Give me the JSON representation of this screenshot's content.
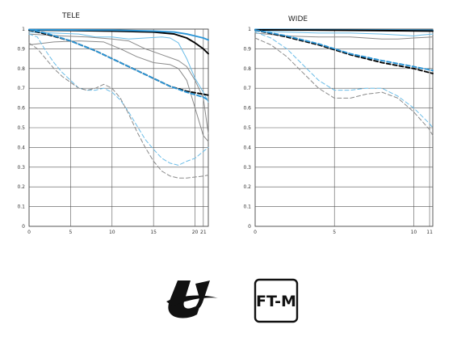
{
  "chart_data": [
    {
      "type": "line",
      "title": "TELE",
      "xlabel": "",
      "ylabel": "",
      "xlim": [
        0,
        21.6
      ],
      "ylim": [
        0,
        1
      ],
      "x_ticks": [
        0,
        5,
        10,
        15,
        20,
        21
      ],
      "y_ticks": [
        0,
        0.1,
        0.2,
        0.3,
        0.4,
        0.5,
        0.6,
        0.7,
        0.8,
        0.9,
        1
      ],
      "x_tick_labels": [
        "0",
        "5",
        "10",
        "15",
        "20",
        "21"
      ],
      "y_tick_labels": [
        "0",
        "0.1",
        "0.2",
        "0.3",
        "0.4",
        "0.5",
        "0.6",
        "0.7",
        "0.8",
        "0.9",
        "1"
      ],
      "grid": true,
      "series": [
        {
          "color": "#000000",
          "dash": "solid",
          "width": 1.9,
          "points": [
            [
              0,
              0.995
            ],
            [
              5,
              0.993
            ],
            [
              10,
              0.99
            ],
            [
              15,
              0.985
            ],
            [
              17.5,
              0.975
            ],
            [
              19,
              0.955
            ],
            [
              20,
              0.93
            ],
            [
              21,
              0.9
            ],
            [
              21.6,
              0.875
            ]
          ]
        },
        {
          "color": "#2b95d6",
          "dash": "solid",
          "width": 1.9,
          "points": [
            [
              0,
              0.997
            ],
            [
              5,
              0.996
            ],
            [
              10,
              0.995
            ],
            [
              15,
              0.99
            ],
            [
              17.5,
              0.985
            ],
            [
              19,
              0.975
            ],
            [
              20,
              0.965
            ],
            [
              21,
              0.955
            ],
            [
              21.6,
              0.945
            ]
          ]
        },
        {
          "color": "#6bbde8",
          "dash": "solid",
          "width": 1.0,
          "points": [
            [
              0,
              0.985
            ],
            [
              3,
              0.98
            ],
            [
              6,
              0.975
            ],
            [
              8,
              0.96
            ],
            [
              10,
              0.96
            ],
            [
              12,
              0.95
            ],
            [
              14,
              0.955
            ],
            [
              16,
              0.96
            ],
            [
              17,
              0.955
            ],
            [
              18,
              0.93
            ],
            [
              19,
              0.85
            ],
            [
              20,
              0.75
            ],
            [
              21,
              0.68
            ],
            [
              21.6,
              0.63
            ]
          ]
        },
        {
          "color": "#8a8a8a",
          "dash": "solid",
          "width": 1.0,
          "points": [
            [
              0,
              0.975
            ],
            [
              4,
              0.965
            ],
            [
              7,
              0.96
            ],
            [
              10,
              0.95
            ],
            [
              12,
              0.94
            ],
            [
              14,
              0.9
            ],
            [
              16,
              0.87
            ],
            [
              18,
              0.84
            ],
            [
              19,
              0.81
            ],
            [
              20,
              0.74
            ],
            [
              21,
              0.65
            ],
            [
              21.6,
              0.47
            ]
          ]
        },
        {
          "color": "#8a8a8a",
          "dash": "solid",
          "width": 1.0,
          "points": [
            [
              0,
              0.92
            ],
            [
              3,
              0.935
            ],
            [
              6,
              0.94
            ],
            [
              9,
              0.935
            ],
            [
              11,
              0.9
            ],
            [
              13,
              0.86
            ],
            [
              15,
              0.83
            ],
            [
              17,
              0.82
            ],
            [
              18,
              0.8
            ],
            [
              19,
              0.74
            ],
            [
              20,
              0.6
            ],
            [
              21,
              0.46
            ],
            [
              21.6,
              0.43
            ]
          ]
        },
        {
          "color": "#000000",
          "dash": "dashed",
          "width": 1.9,
          "points": [
            [
              0,
              0.995
            ],
            [
              2,
              0.975
            ],
            [
              5,
              0.94
            ],
            [
              8,
              0.89
            ],
            [
              11,
              0.83
            ],
            [
              14,
              0.77
            ],
            [
              17,
              0.71
            ],
            [
              19,
              0.685
            ],
            [
              21,
              0.67
            ],
            [
              21.6,
              0.665
            ]
          ]
        },
        {
          "color": "#2b95d6",
          "dash": "dashed",
          "width": 1.9,
          "points": [
            [
              0,
              0.998
            ],
            [
              2,
              0.98
            ],
            [
              5,
              0.94
            ],
            [
              8,
              0.89
            ],
            [
              11,
              0.83
            ],
            [
              14,
              0.77
            ],
            [
              17,
              0.71
            ],
            [
              19,
              0.68
            ],
            [
              21,
              0.655
            ],
            [
              21.6,
              0.64
            ]
          ]
        },
        {
          "color": "#6bbde8",
          "dash": "dashed",
          "width": 1.0,
          "points": [
            [
              0,
              0.975
            ],
            [
              1,
              0.96
            ],
            [
              2,
              0.89
            ],
            [
              3,
              0.83
            ],
            [
              4,
              0.78
            ],
            [
              5,
              0.74
            ],
            [
              6,
              0.7
            ],
            [
              7,
              0.69
            ],
            [
              8,
              0.69
            ],
            [
              9,
              0.7
            ],
            [
              10,
              0.68
            ],
            [
              11,
              0.64
            ],
            [
              12,
              0.58
            ],
            [
              13,
              0.51
            ],
            [
              14,
              0.44
            ],
            [
              15,
              0.39
            ],
            [
              16,
              0.345
            ],
            [
              17,
              0.32
            ],
            [
              18,
              0.31
            ],
            [
              19,
              0.33
            ],
            [
              20,
              0.345
            ],
            [
              21,
              0.38
            ],
            [
              21.6,
              0.4
            ]
          ]
        },
        {
          "color": "#8a8a8a",
          "dash": "dashed",
          "width": 1.0,
          "points": [
            [
              0,
              0.93
            ],
            [
              1,
              0.9
            ],
            [
              2,
              0.85
            ],
            [
              3,
              0.8
            ],
            [
              4,
              0.76
            ],
            [
              5,
              0.73
            ],
            [
              6,
              0.7
            ],
            [
              7,
              0.69
            ],
            [
              8,
              0.7
            ],
            [
              9,
              0.72
            ],
            [
              10,
              0.7
            ],
            [
              11,
              0.65
            ],
            [
              12,
              0.57
            ],
            [
              13,
              0.48
            ],
            [
              14,
              0.4
            ],
            [
              15,
              0.33
            ],
            [
              16,
              0.28
            ],
            [
              17,
              0.255
            ],
            [
              18,
              0.245
            ],
            [
              19,
              0.245
            ],
            [
              20,
              0.25
            ],
            [
              21,
              0.255
            ],
            [
              21.6,
              0.26
            ]
          ]
        }
      ]
    },
    {
      "type": "line",
      "title": "WIDE",
      "xlabel": "",
      "ylabel": "",
      "xlim": [
        0,
        11.2
      ],
      "ylim": [
        0,
        1
      ],
      "x_ticks": [
        0,
        5,
        10,
        11
      ],
      "y_ticks": [
        0,
        0.1,
        0.2,
        0.3,
        0.4,
        0.5,
        0.6,
        0.7,
        0.8,
        0.9,
        1
      ],
      "x_tick_labels": [
        "0",
        "5",
        "10",
        "11"
      ],
      "y_tick_labels": [
        "0",
        "0.1",
        "0.2",
        "0.3",
        "0.4",
        "0.5",
        "0.6",
        "0.7",
        "0.8",
        "0.9",
        "1"
      ],
      "grid": true,
      "series": [
        {
          "color": "#2b95d6",
          "dash": "solid",
          "width": 1.9,
          "points": [
            [
              0,
              0.998
            ],
            [
              3,
              0.997
            ],
            [
              6,
              0.996
            ],
            [
              9,
              0.995
            ],
            [
              11.2,
              0.994
            ]
          ]
        },
        {
          "color": "#000000",
          "dash": "solid",
          "width": 1.9,
          "points": [
            [
              0,
              0.996
            ],
            [
              3,
              0.995
            ],
            [
              6,
              0.994
            ],
            [
              9,
              0.992
            ],
            [
              11.2,
              0.99
            ]
          ]
        },
        {
          "color": "#6bbde8",
          "dash": "solid",
          "width": 1.0,
          "points": [
            [
              0,
              0.99
            ],
            [
              2,
              0.985
            ],
            [
              4,
              0.98
            ],
            [
              6,
              0.98
            ],
            [
              8,
              0.975
            ],
            [
              9,
              0.97
            ],
            [
              10,
              0.965
            ],
            [
              10.5,
              0.97
            ],
            [
              11.2,
              0.975
            ]
          ]
        },
        {
          "color": "#8a8a8a",
          "dash": "solid",
          "width": 1.0,
          "points": [
            [
              0,
              0.98
            ],
            [
              2,
              0.965
            ],
            [
              4,
              0.96
            ],
            [
              6,
              0.96
            ],
            [
              8,
              0.95
            ],
            [
              9,
              0.95
            ],
            [
              10,
              0.955
            ],
            [
              11.2,
              0.96
            ]
          ]
        },
        {
          "color": "#000000",
          "dash": "dashed",
          "width": 1.9,
          "points": [
            [
              0,
              0.995
            ],
            [
              2,
              0.96
            ],
            [
              4,
              0.92
            ],
            [
              6,
              0.87
            ],
            [
              8,
              0.83
            ],
            [
              10,
              0.8
            ],
            [
              11.2,
              0.775
            ]
          ]
        },
        {
          "color": "#2b95d6",
          "dash": "dashed",
          "width": 1.9,
          "points": [
            [
              0,
              0.996
            ],
            [
              2,
              0.965
            ],
            [
              4,
              0.925
            ],
            [
              6,
              0.875
            ],
            [
              8,
              0.84
            ],
            [
              10,
              0.81
            ],
            [
              11.2,
              0.79
            ]
          ]
        },
        {
          "color": "#6bbde8",
          "dash": "dashed",
          "width": 1.0,
          "points": [
            [
              0,
              0.985
            ],
            [
              1,
              0.955
            ],
            [
              2,
              0.9
            ],
            [
              3,
              0.82
            ],
            [
              4,
              0.74
            ],
            [
              5,
              0.69
            ],
            [
              6,
              0.69
            ],
            [
              7,
              0.7
            ],
            [
              8,
              0.7
            ],
            [
              9,
              0.66
            ],
            [
              10,
              0.6
            ],
            [
              11,
              0.52
            ],
            [
              11.2,
              0.5
            ]
          ]
        },
        {
          "color": "#8a8a8a",
          "dash": "dashed",
          "width": 1.0,
          "points": [
            [
              0,
              0.955
            ],
            [
              1,
              0.92
            ],
            [
              2,
              0.86
            ],
            [
              3,
              0.78
            ],
            [
              4,
              0.7
            ],
            [
              5,
              0.65
            ],
            [
              6,
              0.65
            ],
            [
              7,
              0.67
            ],
            [
              8,
              0.68
            ],
            [
              9,
              0.65
            ],
            [
              10,
              0.58
            ],
            [
              11,
              0.49
            ],
            [
              11.2,
              0.46
            ]
          ]
        }
      ]
    }
  ],
  "logos": {
    "lens_logo_icon": "lens-series-logo-icon",
    "ftm_label": "FT-M"
  }
}
